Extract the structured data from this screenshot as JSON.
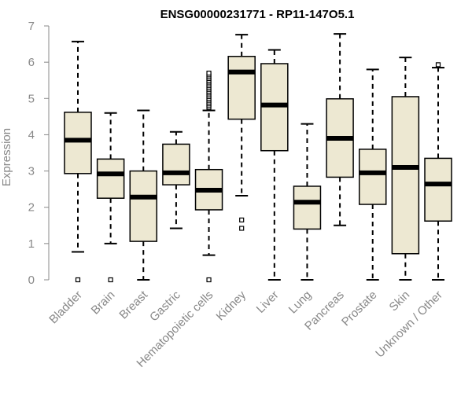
{
  "chart_data": {
    "type": "boxplot",
    "title": "ENSG00000231771 - RP11-147O5.1",
    "xlabel": "",
    "ylabel": "Expression",
    "ylim": [
      0,
      7
    ],
    "yticks": [
      0,
      1,
      2,
      3,
      4,
      5,
      6,
      7
    ],
    "grid": false,
    "legend": "none",
    "box_color": "#ede8d2",
    "median_color": "#000000",
    "axis_color": "#888888",
    "categories": [
      "Bladder",
      "Brain",
      "Breast",
      "Gastric",
      "Hematopoietic cells",
      "Kidney",
      "Liver",
      "Lung",
      "Pancreas",
      "Prostate",
      "Skin",
      "Unknown / Other"
    ],
    "boxes": [
      {
        "name": "Bladder",
        "min": 0.77,
        "q1": 2.93,
        "median": 3.85,
        "q3": 4.62,
        "max": 6.57,
        "outliers": [
          0
        ]
      },
      {
        "name": "Brain",
        "min": 1.0,
        "q1": 2.25,
        "median": 2.92,
        "q3": 3.33,
        "max": 4.6,
        "outliers": [
          0
        ]
      },
      {
        "name": "Breast",
        "min": 0,
        "q1": 1.06,
        "median": 2.28,
        "q3": 3.0,
        "max": 4.67,
        "outliers": []
      },
      {
        "name": "Gastric",
        "min": 1.42,
        "q1": 2.62,
        "median": 2.95,
        "q3": 3.74,
        "max": 4.08,
        "outliers": []
      },
      {
        "name": "Hematopoietic cells",
        "min": 0.68,
        "q1": 1.93,
        "median": 2.47,
        "q3": 3.04,
        "max": 4.67,
        "outliers": [
          0,
          4.75,
          4.8,
          4.85,
          4.9,
          4.95,
          5.0,
          5.05,
          5.1,
          5.15,
          5.2,
          5.25,
          5.3,
          5.35,
          5.4,
          5.45,
          5.5,
          5.55,
          5.6,
          5.65,
          5.7
        ]
      },
      {
        "name": "Kidney",
        "min": 2.32,
        "q1": 4.43,
        "median": 5.73,
        "q3": 6.16,
        "max": 6.76,
        "outliers": [
          1.42,
          1.65
        ]
      },
      {
        "name": "Liver",
        "min": 0,
        "q1": 3.56,
        "median": 4.82,
        "q3": 5.96,
        "max": 6.34,
        "outliers": []
      },
      {
        "name": "Lung",
        "min": 0,
        "q1": 1.4,
        "median": 2.14,
        "q3": 2.58,
        "max": 4.3,
        "outliers": []
      },
      {
        "name": "Pancreas",
        "min": 1.5,
        "q1": 2.83,
        "median": 3.9,
        "q3": 4.99,
        "max": 6.78,
        "outliers": []
      },
      {
        "name": "Prostate",
        "min": 0,
        "q1": 2.08,
        "median": 2.95,
        "q3": 3.6,
        "max": 5.8,
        "outliers": []
      },
      {
        "name": "Skin",
        "min": 0,
        "q1": 0.72,
        "median": 3.1,
        "q3": 5.05,
        "max": 6.13,
        "outliers": []
      },
      {
        "name": "Unknown / Other",
        "min": 0,
        "q1": 1.62,
        "median": 2.64,
        "q3": 3.35,
        "max": 5.85,
        "outliers": [
          5.93
        ]
      }
    ]
  }
}
